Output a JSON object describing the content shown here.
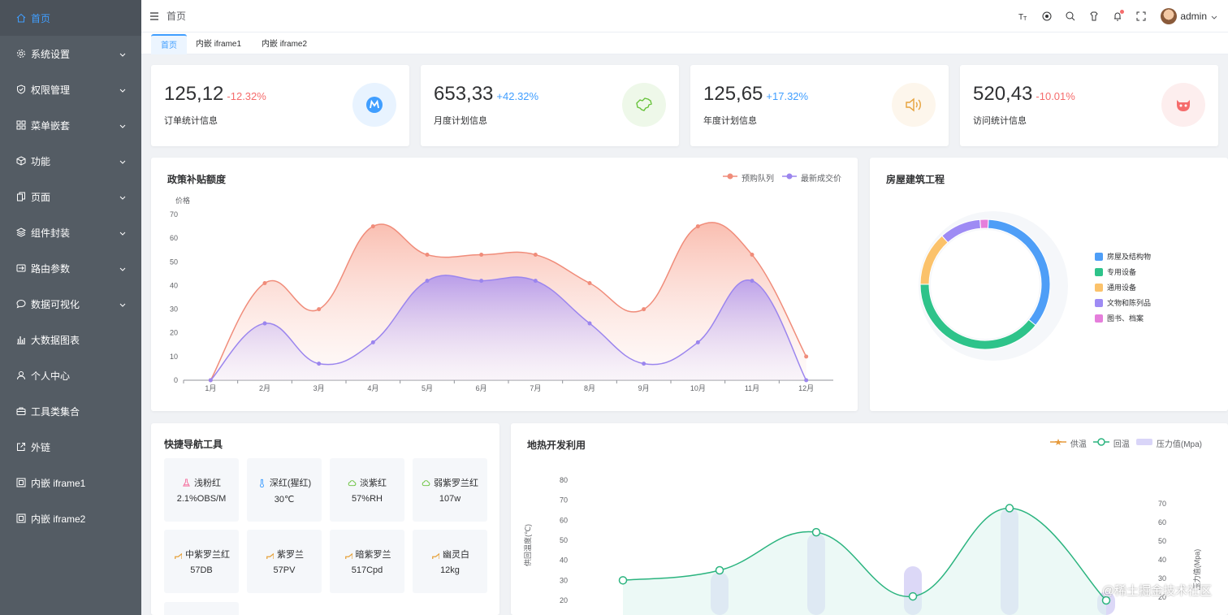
{
  "sidebar": {
    "items": [
      {
        "label": "首页",
        "icon": "home-icon",
        "active": true,
        "arrow": false
      },
      {
        "label": "系统设置",
        "icon": "gear-icon",
        "arrow": true
      },
      {
        "label": "权限管理",
        "icon": "shield-icon",
        "arrow": true
      },
      {
        "label": "菜单嵌套",
        "icon": "grid-icon",
        "arrow": true
      },
      {
        "label": "功能",
        "icon": "cube-icon",
        "arrow": true
      },
      {
        "label": "页面",
        "icon": "copy-icon",
        "arrow": true
      },
      {
        "label": "组件封装",
        "icon": "layers-icon",
        "arrow": true
      },
      {
        "label": "路由参数",
        "icon": "route-icon",
        "arrow": true
      },
      {
        "label": "数据可视化",
        "icon": "chat-icon",
        "arrow": true
      },
      {
        "label": "大数据图表",
        "icon": "bar-chart-icon",
        "arrow": false
      },
      {
        "label": "个人中心",
        "icon": "user-icon",
        "arrow": false
      },
      {
        "label": "工具类集合",
        "icon": "toolbox-icon",
        "arrow": false
      },
      {
        "label": "外链",
        "icon": "external-link-icon",
        "arrow": false
      },
      {
        "label": "内嵌 iframe1",
        "icon": "frame-icon",
        "arrow": false
      },
      {
        "label": "内嵌 iframe2",
        "icon": "frame-icon",
        "arrow": false
      }
    ]
  },
  "header": {
    "breadcrumb": "首页",
    "username": "admin",
    "tools": [
      "font-size-icon",
      "theme-icon",
      "search-icon",
      "skin-icon",
      "bell-icon",
      "fullscreen-icon"
    ]
  },
  "tabs": [
    {
      "label": "首页",
      "active": true
    },
    {
      "label": "内嵌 iframe1",
      "active": false
    },
    {
      "label": "内嵌 iframe2",
      "active": false
    }
  ],
  "stats": [
    {
      "value": "125,12",
      "change": "-12.32%",
      "change_color": "#f56c6c",
      "label": "订单统计信息",
      "icon": "m-logo-icon",
      "icon_bg": "#e8f3ff",
      "icon_color": "#409eff"
    },
    {
      "value": "653,33",
      "change": "+42.32%",
      "change_color": "#409eff",
      "label": "月度计划信息",
      "icon": "china-map-icon",
      "icon_bg": "#eef8e9",
      "icon_color": "#67c23a"
    },
    {
      "value": "125,65",
      "change": "+17.32%",
      "change_color": "#409eff",
      "label": "年度计划信息",
      "icon": "speaker-icon",
      "icon_bg": "#fdf6ec",
      "icon_color": "#e6a23c"
    },
    {
      "value": "520,43",
      "change": "-10.01%",
      "change_color": "#f56c6c",
      "label": "访问统计信息",
      "icon": "github-icon",
      "icon_bg": "#fdeeee",
      "icon_color": "#f56c6c"
    }
  ],
  "subsidy": {
    "title": "政策补贴额度",
    "legend": [
      "预购队列",
      "最新成交价"
    ]
  },
  "housing": {
    "title": "房屋建筑工程",
    "legend": [
      "房屋及结构物",
      "专用设备",
      "通用设备",
      "文物和陈列品",
      "图书、档案"
    ]
  },
  "quicknav": {
    "title": "快捷导航工具",
    "items": [
      {
        "name": "浅粉红",
        "value": "2.1%OBS/M",
        "icon": "flask-icon",
        "color": "#f56c9c"
      },
      {
        "name": "深红(猩红)",
        "value": "30℃",
        "icon": "thermometer-icon",
        "color": "#409eff"
      },
      {
        "name": "淡紫红",
        "value": "57%RH",
        "icon": "cloud-icon",
        "color": "#67c23a"
      },
      {
        "name": "弱紫罗兰红",
        "value": "107w",
        "icon": "cloud-icon",
        "color": "#67c23a"
      },
      {
        "name": "中紫罗兰红",
        "value": "57DB",
        "icon": "speaker-icon",
        "color": "#e6a23c"
      },
      {
        "name": "紫罗兰",
        "value": "57PV",
        "icon": "speaker-icon",
        "color": "#e6a23c"
      },
      {
        "name": "暗紫罗兰",
        "value": "517Cpd",
        "icon": "speaker-icon",
        "color": "#e6a23c"
      },
      {
        "name": "幽灵白",
        "value": "12kg",
        "icon": "speaker-icon",
        "color": "#e6a23c"
      }
    ]
  },
  "geothermal": {
    "title": "地热开发利用",
    "legend": [
      "供温",
      "回温",
      "压力值(Mpa)"
    ]
  },
  "brand_watermark": "@稀土掘金技术社区",
  "colors": {
    "accent": "#409eff",
    "sidebar_bg": "#545c64",
    "series_red": "#f08c7a",
    "series_purple": "#9b85ee",
    "green": "#2bb47f"
  },
  "chart_data": [
    {
      "type": "area",
      "title": "政策补贴额度",
      "ylabel": "价格",
      "categories": [
        "1月",
        "2月",
        "3月",
        "4月",
        "5月",
        "6月",
        "7月",
        "8月",
        "9月",
        "10月",
        "11月",
        "12月"
      ],
      "ylim": [
        0,
        70
      ],
      "yticks": [
        0,
        10,
        20,
        30,
        40,
        50,
        60,
        70
      ],
      "series": [
        {
          "name": "预购队列",
          "values": [
            0,
            41,
            30,
            65,
            53,
            53,
            53,
            41,
            30,
            65,
            53,
            10
          ],
          "color": "#f08c7a"
        },
        {
          "name": "最新成交价",
          "values": [
            0,
            24,
            7,
            16,
            42,
            42,
            42,
            24,
            7,
            16,
            42,
            0
          ],
          "color": "#9b85ee"
        }
      ],
      "legend": "top-right"
    },
    {
      "type": "pie",
      "title": "房屋建筑工程",
      "categories": [
        "房屋及结构物",
        "专用设备",
        "通用设备",
        "文物和陈列品",
        "图书、档案"
      ],
      "values": [
        34,
        38,
        13,
        10,
        2
      ],
      "colors": [
        "#4e9ef7",
        "#2ec38a",
        "#fbc26b",
        "#9e8bf4",
        "#e57edb"
      ],
      "legend": "right"
    },
    {
      "type": "line",
      "title": "地热开发利用",
      "ylabel": "供回温度(℃)",
      "ylabel_right": "压力值(Mpa)",
      "yticks": [
        20,
        30,
        40,
        50,
        60,
        70,
        80
      ],
      "yticks_right": [
        20,
        30,
        40,
        50,
        60,
        70
      ],
      "series": [
        {
          "name": "回温",
          "values": [
            30,
            35,
            54,
            22,
            66,
            20
          ],
          "color": "#2bb47f"
        },
        {
          "name": "压力值(Mpa)",
          "values": [
            0,
            22,
            42,
            25,
            55,
            12
          ],
          "color": "#c9c4f5"
        }
      ],
      "legend": "top-right"
    }
  ]
}
